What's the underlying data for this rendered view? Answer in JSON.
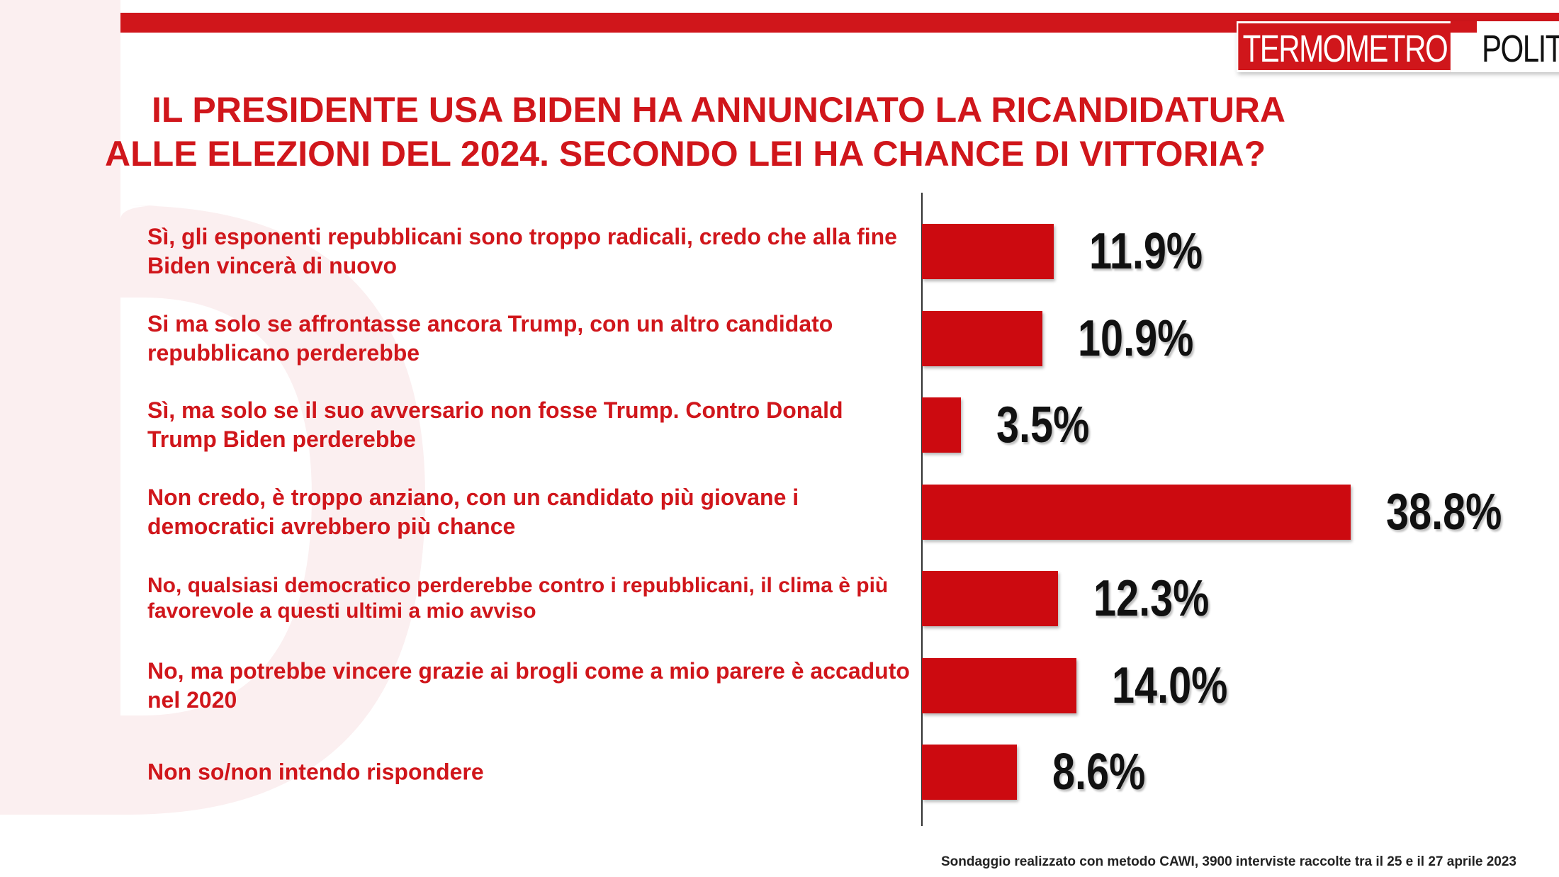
{
  "brand": {
    "logo_part_1": "TERMOMETRO",
    "logo_part_2": "POLITICO",
    "accent_color": "#d0161b",
    "bar_color": "#cc0a10"
  },
  "title": {
    "line_1": "IL PRESIDENTE USA BIDEN HA ANNUNCIATO LA RICANDIDATURA",
    "line_2": "ALLE ELEZIONI DEL 2024. SECONDO LEI HA CHANCE DI VITTORIA?"
  },
  "footnote": "Sondaggio realizzato con metodo CAWI, 3900 interviste raccolte tra il 25 e il 27 aprile 2023",
  "chart_data": {
    "type": "bar",
    "orientation": "horizontal",
    "title": "IL PRESIDENTE USA BIDEN HA ANNUNCIATO LA RICANDIDATURA ALLE ELEZIONI DEL 2024. SECONDO LEI HA CHANCE DI VITTORIA?",
    "categories": [
      "Sì, gli esponenti repubblicani sono troppo radicali, credo che alla fine Biden vincerà di nuovo",
      "Si ma solo se affrontasse ancora Trump, con un altro candidato repubblicano perderebbe",
      "Sì, ma solo se il suo avversario non fosse Trump. Contro Donald Trump Biden perderebbe",
      "Non credo, è troppo anziano, con un candidato più giovane i democratici avrebbero più chance",
      "No, qualsiasi democratico perderebbe contro i repubblicani, il clima è più favorevole a questi ultimi a mio avviso",
      "No, ma potrebbe vincere grazie ai brogli come a mio parere è accaduto nel 2020",
      "Non so/non intendo rispondere"
    ],
    "values": [
      11.9,
      10.9,
      3.5,
      38.8,
      12.3,
      14.0,
      8.6
    ],
    "value_labels": [
      "11.9%",
      "10.9%",
      "3.5%",
      "38.8%",
      "12.3%",
      "14.0%",
      "8.6%"
    ],
    "xlabel": "",
    "ylabel": "",
    "xlim": [
      0,
      40
    ],
    "grid": false,
    "legend": "none"
  }
}
